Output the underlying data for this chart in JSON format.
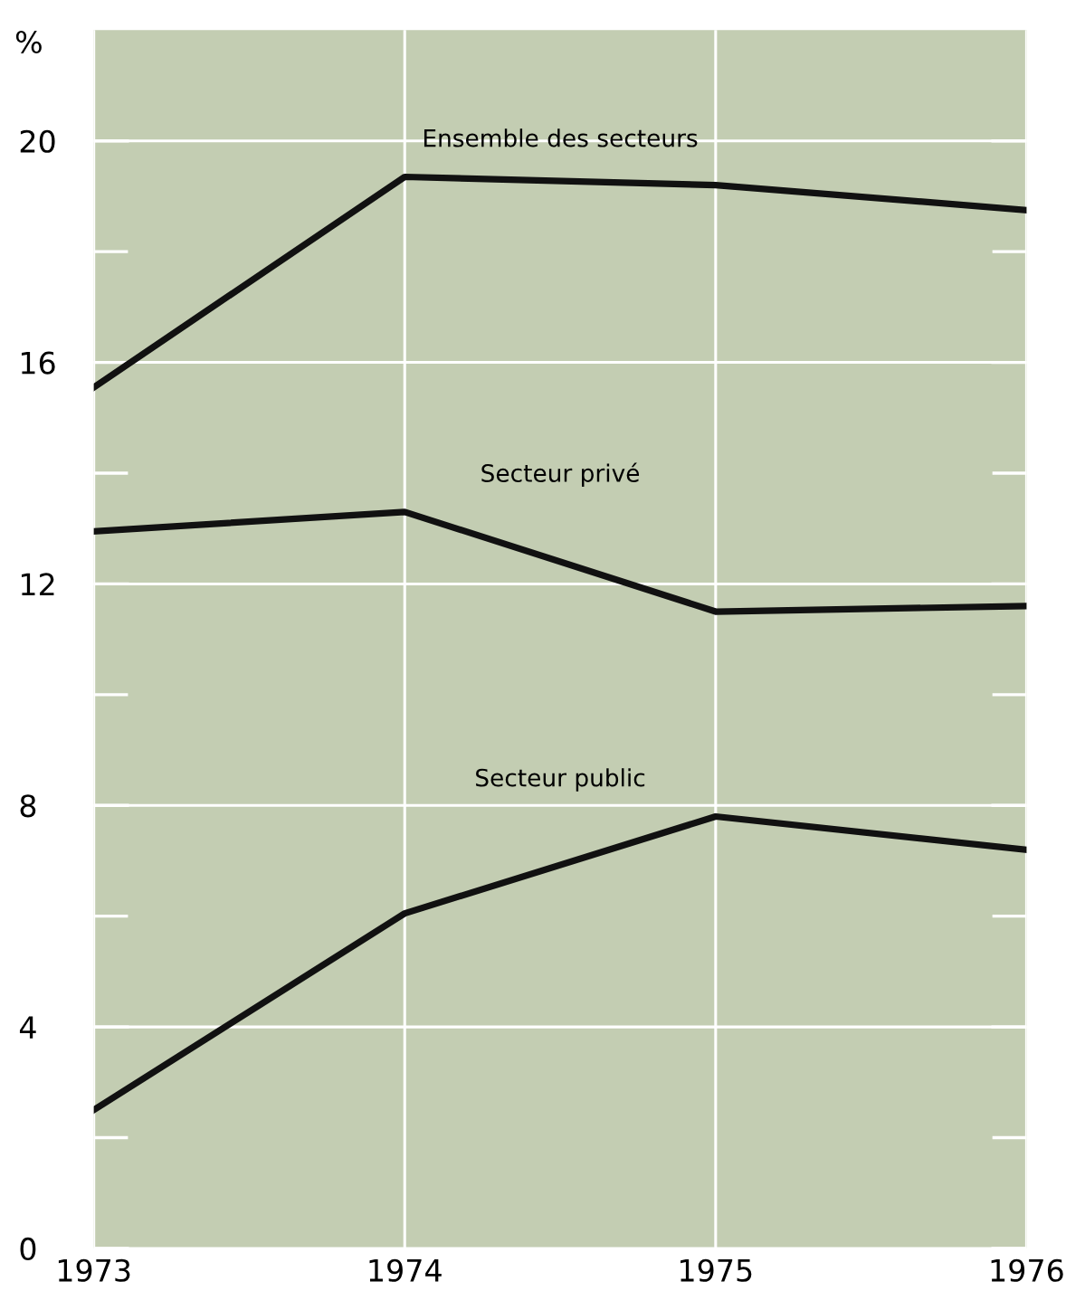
{
  "chart_data": {
    "type": "line",
    "ylabel": "%",
    "x": [
      1973,
      1974,
      1975,
      1976
    ],
    "series": [
      {
        "color": "#111111",
        "values": [
          15.55,
          19.35,
          19.2,
          18.75
        ]
      },
      {
        "color": "#111111",
        "values": [
          12.95,
          13.3,
          11.5,
          11.6
        ]
      },
      {
        "color": "#111111",
        "values": [
          2.5,
          6.05,
          7.8,
          7.2
        ]
      }
    ],
    "xlim": [
      1973,
      1976
    ],
    "xticks": [
      1973,
      1974,
      1975,
      1976
    ],
    "ylim": [
      0,
      22
    ],
    "yticks": [
      0,
      4,
      8,
      12,
      16,
      20
    ],
    "grid": true,
    "marker": "none",
    "line_style": "solid",
    "annotations": [
      "Ensemble des secteurs",
      "Secteur privé",
      "Secteur public"
    ]
  }
}
